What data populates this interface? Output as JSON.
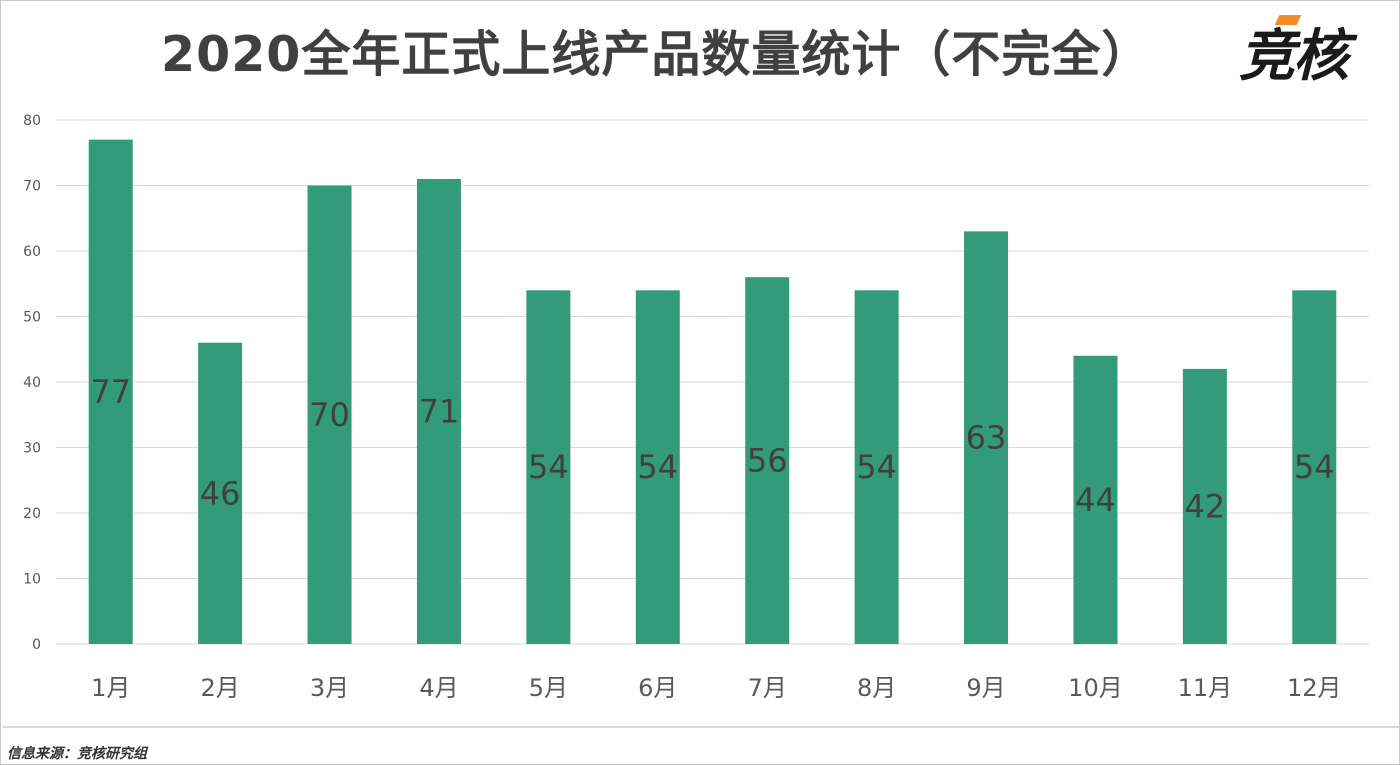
{
  "title": "2020全年正式上线产品数量统计（不完全）",
  "logo_text": "竞核",
  "source": "信息来源：竞核研究组",
  "colors": {
    "bar": "#349B7A",
    "logo_accent": "#F28C28",
    "grid": "#D9D9D9"
  },
  "chart_data": {
    "type": "bar",
    "title": "2020全年正式上线产品数量统计（不完全）",
    "categories": [
      "1月",
      "2月",
      "3月",
      "4月",
      "5月",
      "6月",
      "7月",
      "8月",
      "9月",
      "10月",
      "11月",
      "12月"
    ],
    "values": [
      77,
      46,
      70,
      71,
      54,
      54,
      56,
      54,
      63,
      44,
      42,
      54
    ],
    "y_ticks": [
      "0",
      "10",
      "20",
      "30",
      "40",
      "50",
      "60",
      "70",
      "80"
    ],
    "ylim": [
      0,
      80
    ],
    "grid": true,
    "xlabel": "",
    "ylabel": ""
  }
}
